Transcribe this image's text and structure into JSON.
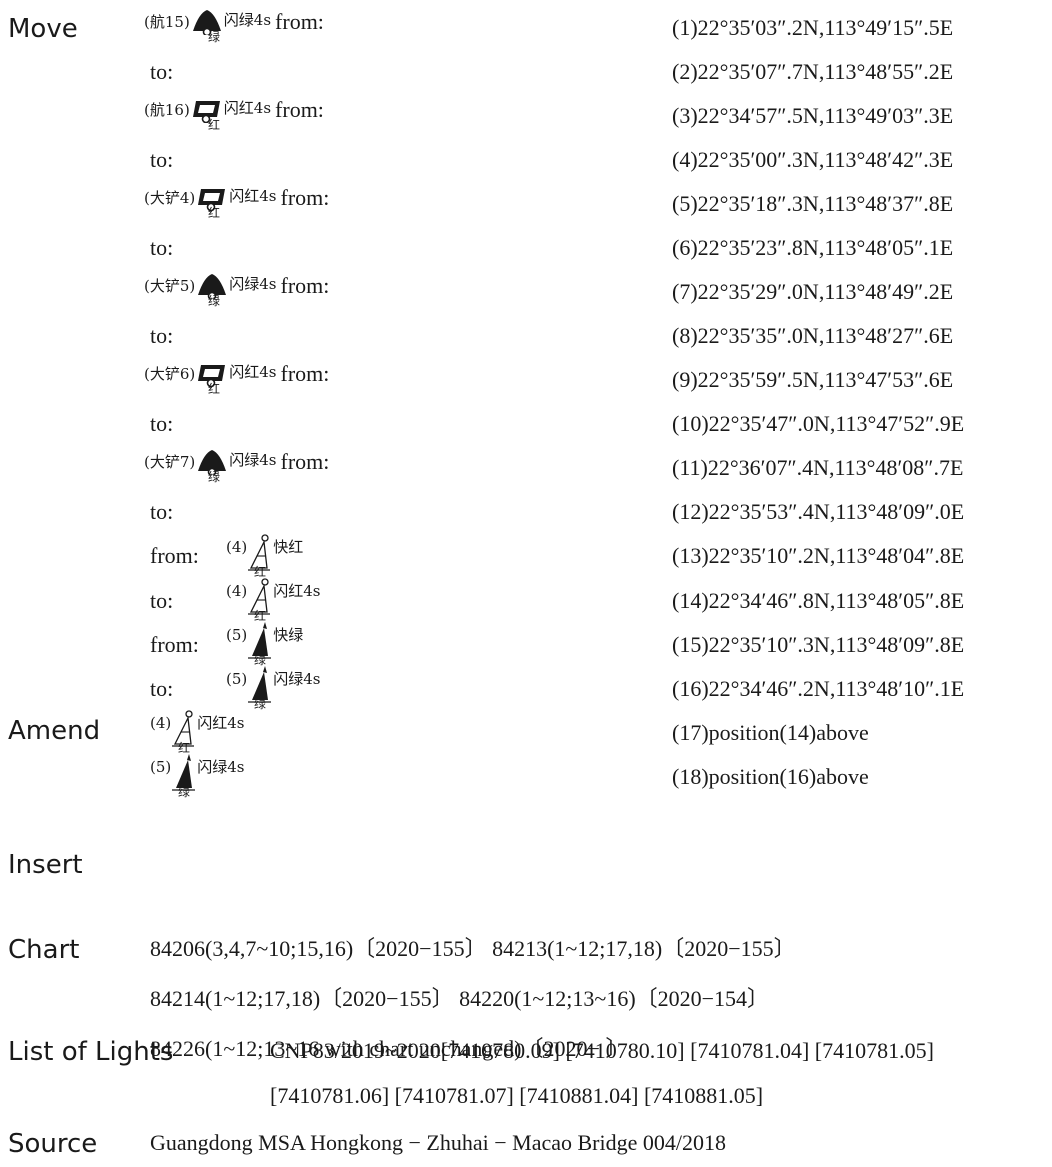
{
  "labels": {
    "move": "Move",
    "amend": "Amend",
    "insert": "Insert",
    "chart": "Chart",
    "list_of_lights": "List of Lights",
    "source": "Source"
  },
  "words": {
    "from": "from:",
    "to": "to:"
  },
  "move_buoys": [
    {
      "tag": "(航15)",
      "light": "闪绿4s",
      "color": "绿",
      "shape": "conical-black-icon"
    },
    {
      "tag": "(航16)",
      "light": "闪红4s",
      "color": "红",
      "shape": "can-outline-icon"
    },
    {
      "tag": "(大铲4)",
      "light": "闪红4s",
      "color": "红",
      "shape": "can-outline-icon"
    },
    {
      "tag": "(大铲5)",
      "light": "闪绿4s",
      "color": "绿",
      "shape": "conical-black-icon"
    },
    {
      "tag": "(大铲6)",
      "light": "闪红4s",
      "color": "红",
      "shape": "can-outline-icon"
    },
    {
      "tag": "(大铲7)",
      "light": "闪绿4s",
      "color": "绿",
      "shape": "conical-black-icon"
    }
  ],
  "amend_items": [
    {
      "word": "from:",
      "tag": "(4)",
      "light": "快红",
      "color": "红",
      "shape": "beacon-outline-icon"
    },
    {
      "word": "to:",
      "tag": "(4)",
      "light": "闪红4s",
      "color": "红",
      "shape": "beacon-outline-icon"
    },
    {
      "word": "from:",
      "tag": "(5)",
      "light": "快绿",
      "color": "绿",
      "shape": "beacon-black-icon"
    },
    {
      "word": "to:",
      "tag": "(5)",
      "light": "闪绿4s",
      "color": "绿",
      "shape": "beacon-black-icon"
    }
  ],
  "insert_items": [
    {
      "tag": "(4)",
      "light": "闪红4s",
      "color": "红",
      "shape": "beacon-outline-icon"
    },
    {
      "tag": "(5)",
      "light": "闪绿4s",
      "color": "绿",
      "shape": "beacon-black-icon"
    }
  ],
  "positions": [
    "(1)22°35′03″.2N,113°49′15″.5E",
    "(2)22°35′07″.7N,113°48′55″.2E",
    "(3)22°34′57″.5N,113°49′03″.3E",
    "(4)22°35′00″.3N,113°48′42″.3E",
    "(5)22°35′18″.3N,113°48′37″.8E",
    "(6)22°35′23″.8N,113°48′05″.1E",
    "(7)22°35′29″.0N,113°48′49″.2E",
    "(8)22°35′35″.0N,113°48′27″.6E",
    "(9)22°35′59″.5N,113°47′53″.6E",
    "(10)22°35′47″.0N,113°47′52″.9E",
    "(11)22°36′07″.4N,113°48′08″.7E",
    "(12)22°35′53″.4N,113°48′09″.0E",
    "(13)22°35′10″.2N,113°48′04″.8E",
    "(14)22°34′46″.8N,113°48′05″.8E",
    "(15)22°35′10″.3N,113°48′09″.8E",
    "(16)22°34′46″.2N,113°48′10″.1E",
    "(17)position(14)above",
    "(18)position(16)above"
  ],
  "chart_lines": [
    "84206(3,4,7~10;15,16)〔2020−155〕 84213(1~12;17,18)〔2020−155〕",
    "84214(1~12;17,18)〔2020−155〕 84220(1~12;13~16)〔2020−154〕",
    "84226(1~12;13~16 with chart unchanged)〔2020− 〕"
  ],
  "lights_lines": [
    "CNP83/2019~2020[7410780.09] [7410780.10] [7410781.04] [7410781.05]",
    "[7410781.06] [7410781.07] [7410881.04] [7410881.05]"
  ],
  "source_text": "Guangdong MSA Hongkong − Zhuhai − Macao Bridge 004/2018"
}
